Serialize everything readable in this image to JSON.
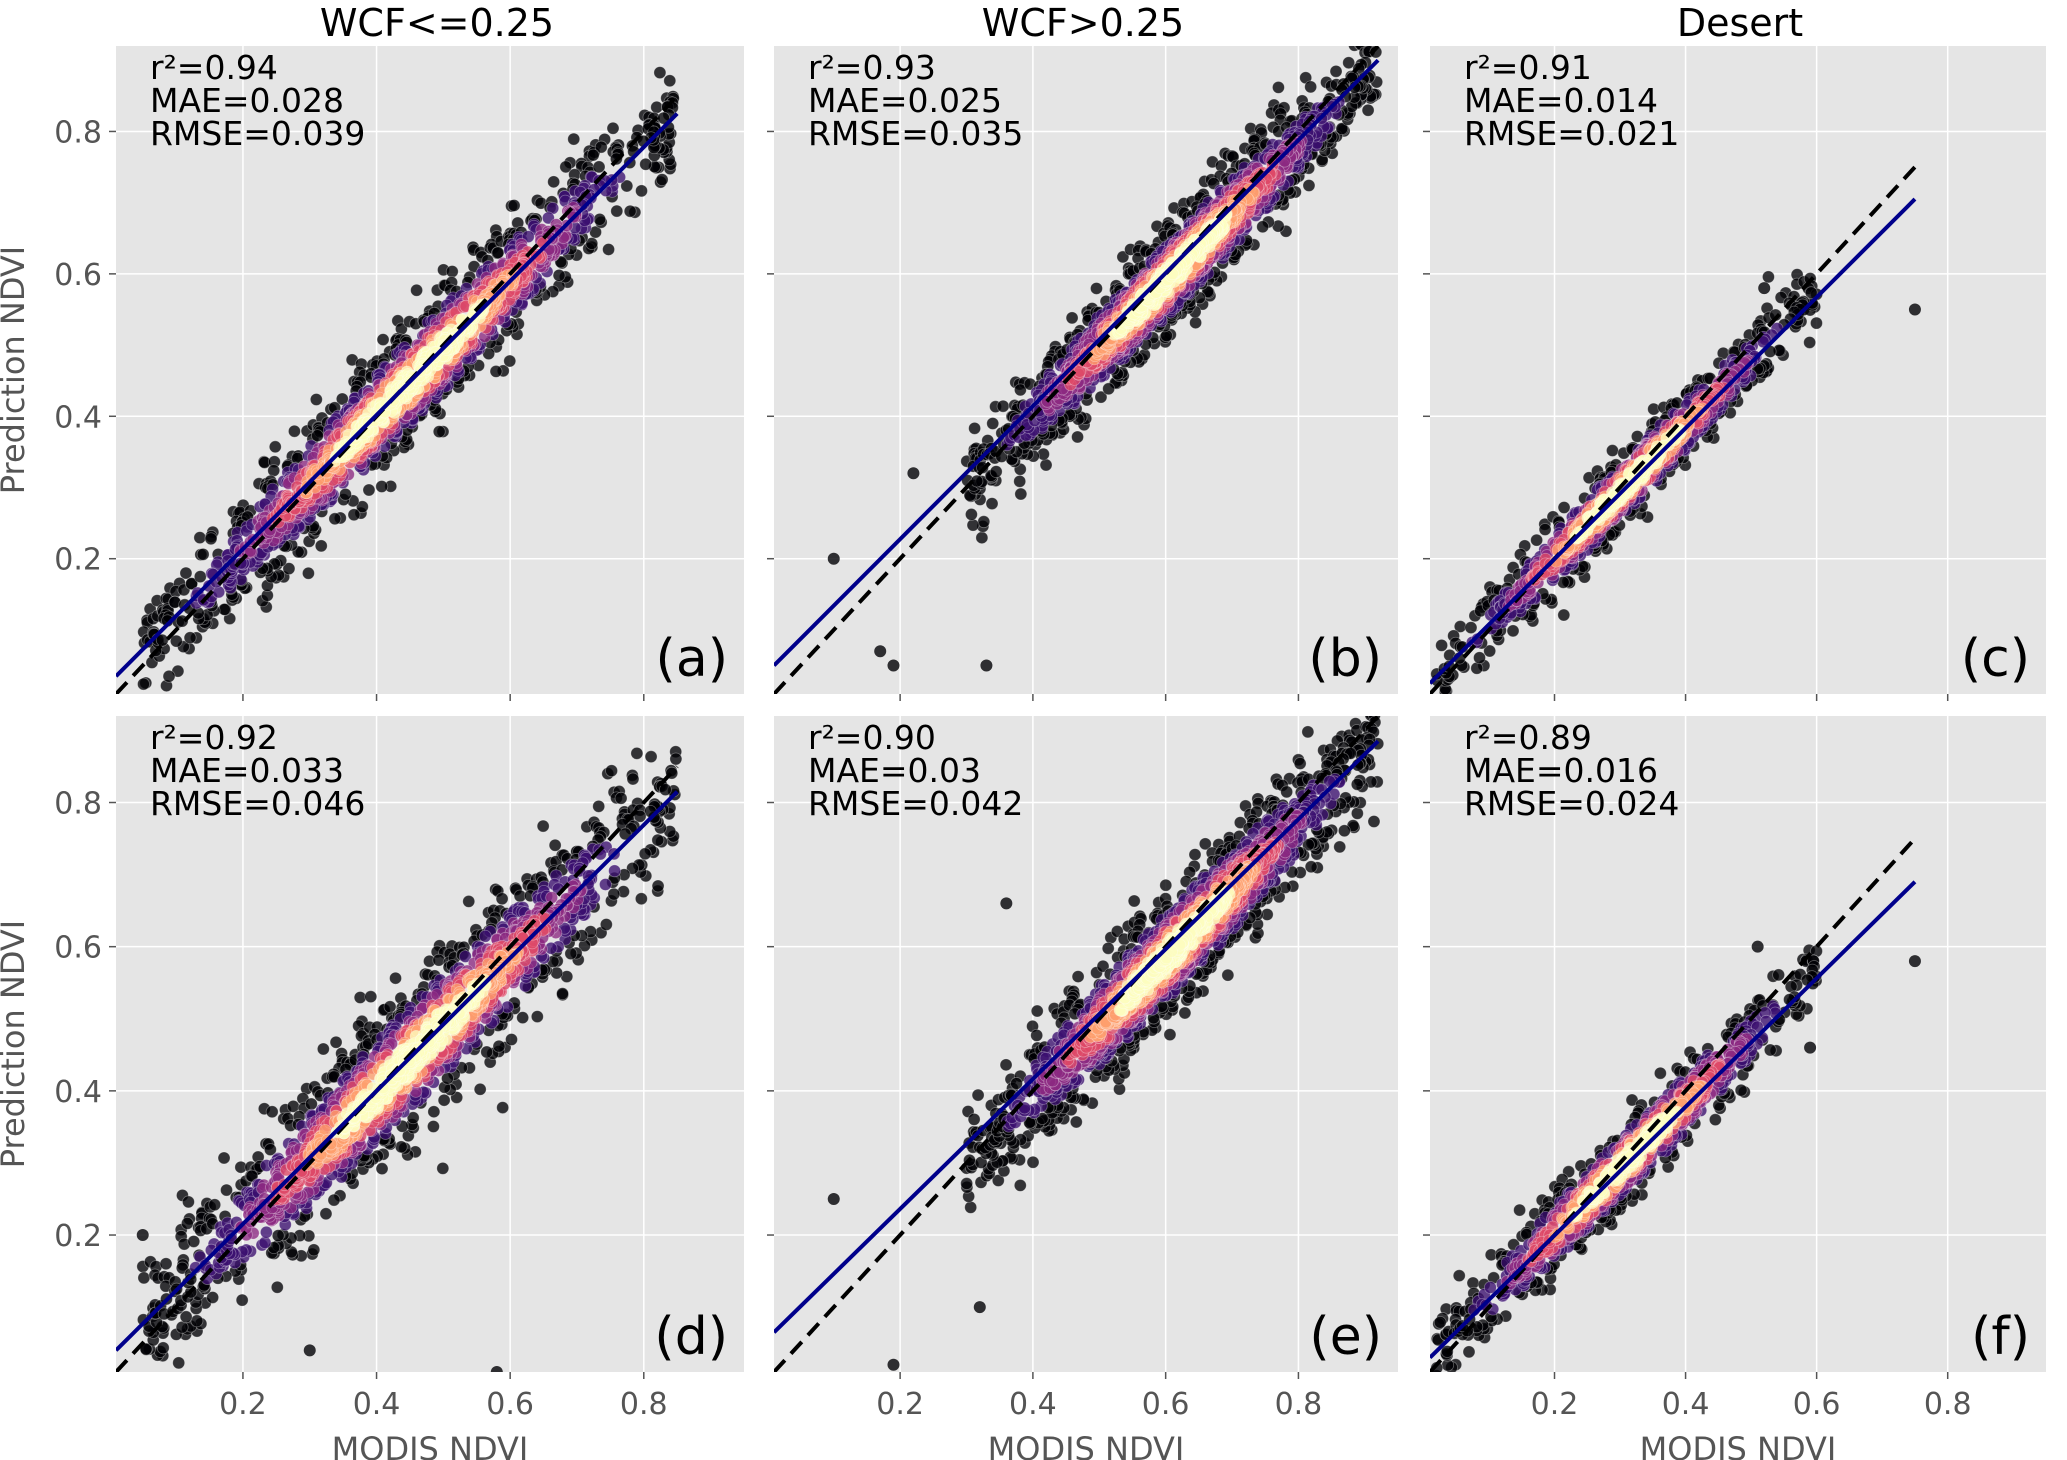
{
  "figure": {
    "column_titles": [
      "WCF<=0.25",
      "WCF>0.25",
      "Desert"
    ],
    "xlabel": "MODIS NDVI",
    "ylabel": "Prediction NDVI"
  },
  "chart_data": [
    {
      "id": "a",
      "type": "scatter",
      "panel_label": "(a)",
      "column": 0,
      "row": 0,
      "stats": [
        "r²=0.94",
        "MAE=0.028",
        "RMSE=0.039"
      ],
      "xlim": [
        0.01,
        0.95
      ],
      "ylim": [
        0.01,
        0.92
      ],
      "xticks": [
        0.2,
        0.4,
        0.6,
        0.8
      ],
      "yticks": [
        0.2,
        0.4,
        0.6,
        0.8
      ],
      "show_xticklabels": false,
      "show_yticklabels": true,
      "show_xlabel": false,
      "show_ylabel": true,
      "point_cloud": {
        "x_range": [
          0.05,
          0.85
        ],
        "center_slope": 0.95,
        "center_intercept": 0.02,
        "spread": 0.04,
        "n": 1500
      },
      "identity_line": {
        "x": [
          0.01,
          0.85
        ],
        "y": [
          0.01,
          0.85
        ]
      },
      "fit_line": {
        "x": [
          0.01,
          0.85
        ],
        "y": [
          0.035,
          0.825
        ]
      },
      "grid": true
    },
    {
      "id": "b",
      "type": "scatter",
      "panel_label": "(b)",
      "column": 1,
      "row": 0,
      "stats": [
        "r²=0.93",
        "MAE=0.025",
        "RMSE=0.035"
      ],
      "xlim": [
        0.01,
        0.95
      ],
      "ylim": [
        0.01,
        0.92
      ],
      "xticks": [
        0.2,
        0.4,
        0.6,
        0.8
      ],
      "yticks": [
        0.2,
        0.4,
        0.6,
        0.8
      ],
      "show_xticklabels": false,
      "show_yticklabels": false,
      "show_xlabel": false,
      "show_ylabel": false,
      "point_cloud": {
        "x_range": [
          0.3,
          0.92
        ],
        "center_slope": 0.95,
        "center_intercept": 0.02,
        "spread": 0.035,
        "n": 1500
      },
      "outliers": [
        [
          0.1,
          0.2
        ],
        [
          0.17,
          0.07
        ],
        [
          0.19,
          0.05
        ],
        [
          0.33,
          0.05
        ],
        [
          0.22,
          0.32
        ]
      ],
      "identity_line": {
        "x": [
          0.01,
          0.92
        ],
        "y": [
          0.01,
          0.92
        ]
      },
      "fit_line": {
        "x": [
          0.01,
          0.92
        ],
        "y": [
          0.05,
          0.9
        ]
      },
      "grid": true
    },
    {
      "id": "c",
      "type": "scatter",
      "panel_label": "(c)",
      "column": 2,
      "row": 0,
      "stats": [
        "r²=0.91",
        "MAE=0.014",
        "RMSE=0.021"
      ],
      "xlim": [
        0.01,
        0.95
      ],
      "ylim": [
        0.01,
        0.92
      ],
      "xticks": [
        0.2,
        0.4,
        0.6,
        0.8
      ],
      "yticks": [
        0.2,
        0.4,
        0.6,
        0.8
      ],
      "show_xticklabels": false,
      "show_yticklabels": false,
      "show_xlabel": false,
      "show_ylabel": false,
      "point_cloud": {
        "x_range": [
          0.02,
          0.6
        ],
        "center_slope": 0.93,
        "center_intercept": 0.015,
        "spread": 0.025,
        "n": 900
      },
      "outliers": [
        [
          0.75,
          0.55
        ],
        [
          0.52,
          0.58
        ],
        [
          0.58,
          0.55
        ]
      ],
      "identity_line": {
        "x": [
          0.01,
          0.75
        ],
        "y": [
          0.01,
          0.75
        ]
      },
      "fit_line": {
        "x": [
          0.01,
          0.75
        ],
        "y": [
          0.025,
          0.705
        ]
      },
      "grid": true
    },
    {
      "id": "d",
      "type": "scatter",
      "panel_label": "(d)",
      "column": 0,
      "row": 1,
      "stats": [
        "r²=0.92",
        "MAE=0.033",
        "RMSE=0.046"
      ],
      "xlim": [
        0.01,
        0.95
      ],
      "ylim": [
        0.01,
        0.92
      ],
      "xticks": [
        0.2,
        0.4,
        0.6,
        0.8
      ],
      "yticks": [
        0.2,
        0.4,
        0.6,
        0.8
      ],
      "show_xticklabels": true,
      "show_yticklabels": true,
      "show_xlabel": true,
      "show_ylabel": true,
      "point_cloud": {
        "x_range": [
          0.05,
          0.85
        ],
        "center_slope": 0.93,
        "center_intercept": 0.025,
        "spread": 0.048,
        "n": 1600
      },
      "outliers": [
        [
          0.05,
          0.2
        ],
        [
          0.3,
          0.04
        ],
        [
          0.58,
          0.01
        ]
      ],
      "identity_line": {
        "x": [
          0.01,
          0.85
        ],
        "y": [
          0.01,
          0.85
        ]
      },
      "fit_line": {
        "x": [
          0.01,
          0.85
        ],
        "y": [
          0.04,
          0.815
        ]
      },
      "grid": true
    },
    {
      "id": "e",
      "type": "scatter",
      "panel_label": "(e)",
      "column": 1,
      "row": 1,
      "stats": [
        "r²=0.90",
        "MAE=0.03",
        "RMSE=0.042"
      ],
      "xlim": [
        0.01,
        0.95
      ],
      "ylim": [
        0.01,
        0.92
      ],
      "xticks": [
        0.2,
        0.4,
        0.6,
        0.8
      ],
      "yticks": [
        0.2,
        0.4,
        0.6,
        0.8
      ],
      "show_xticklabels": true,
      "show_yticklabels": false,
      "show_xlabel": true,
      "show_ylabel": false,
      "point_cloud": {
        "x_range": [
          0.3,
          0.92
        ],
        "center_slope": 0.94,
        "center_intercept": 0.02,
        "spread": 0.04,
        "n": 1600
      },
      "outliers": [
        [
          0.1,
          0.25
        ],
        [
          0.19,
          0.02
        ],
        [
          0.32,
          0.1
        ],
        [
          0.36,
          0.66
        ]
      ],
      "identity_line": {
        "x": [
          0.01,
          0.92
        ],
        "y": [
          0.01,
          0.92
        ]
      },
      "fit_line": {
        "x": [
          0.01,
          0.92
        ],
        "y": [
          0.065,
          0.885
        ]
      },
      "grid": true
    },
    {
      "id": "f",
      "type": "scatter",
      "panel_label": "(f)",
      "column": 2,
      "row": 1,
      "stats": [
        "r²=0.89",
        "MAE=0.016",
        "RMSE=0.024"
      ],
      "xlim": [
        0.01,
        0.95
      ],
      "ylim": [
        0.01,
        0.92
      ],
      "xticks": [
        0.2,
        0.4,
        0.6,
        0.8
      ],
      "yticks": [
        0.2,
        0.4,
        0.6,
        0.8
      ],
      "show_xticklabels": true,
      "show_yticklabels": false,
      "show_xlabel": true,
      "show_ylabel": false,
      "point_cloud": {
        "x_range": [
          0.02,
          0.6
        ],
        "center_slope": 0.91,
        "center_intercept": 0.02,
        "spread": 0.028,
        "n": 900
      },
      "outliers": [
        [
          0.75,
          0.58
        ],
        [
          0.51,
          0.6
        ],
        [
          0.59,
          0.46
        ]
      ],
      "identity_line": {
        "x": [
          0.01,
          0.75
        ],
        "y": [
          0.01,
          0.75
        ]
      },
      "fit_line": {
        "x": [
          0.01,
          0.75
        ],
        "y": [
          0.03,
          0.69
        ]
      },
      "grid": true
    }
  ],
  "style": {
    "panel_bg": "#e5e5e5",
    "grid_color": "#ffffff",
    "point_colors": [
      "#000004",
      "#3b0f70",
      "#8c2981",
      "#de4968",
      "#fe9f6d",
      "#fcfdbf"
    ],
    "identity_line_color": "#000000",
    "fit_line_color": "#00008b"
  }
}
